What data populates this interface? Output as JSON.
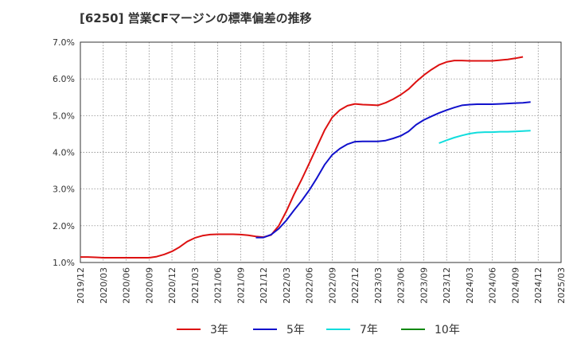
{
  "chart_data": {
    "type": "line",
    "title": "[6250]  営業CFマージンの標準偏差の推移",
    "xlabel": "",
    "ylabel": "",
    "ylim": [
      1.0,
      7.0
    ],
    "y_ticks": [
      "1.0%",
      "2.0%",
      "3.0%",
      "4.0%",
      "5.0%",
      "6.0%",
      "7.0%"
    ],
    "x_ticks": [
      "2019/12",
      "2020/03",
      "2020/06",
      "2020/09",
      "2020/12",
      "2021/03",
      "2021/06",
      "2021/09",
      "2021/12",
      "2022/03",
      "2022/06",
      "2022/09",
      "2022/12",
      "2023/03",
      "2023/06",
      "2023/09",
      "2023/12",
      "2024/03",
      "2024/06",
      "2024/09",
      "2024/12",
      "2025/03"
    ],
    "grid": true,
    "legend_position": "bottom",
    "series": [
      {
        "name": "3年",
        "color": "#dd1111",
        "points": [
          [
            "2019/12",
            1.15
          ],
          [
            "2020/01",
            1.15
          ],
          [
            "2020/02",
            1.14
          ],
          [
            "2020/03",
            1.13
          ],
          [
            "2020/04",
            1.13
          ],
          [
            "2020/05",
            1.13
          ],
          [
            "2020/06",
            1.13
          ],
          [
            "2020/07",
            1.13
          ],
          [
            "2020/08",
            1.13
          ],
          [
            "2020/09",
            1.13
          ],
          [
            "2020/10",
            1.16
          ],
          [
            "2020/11",
            1.22
          ],
          [
            "2020/12",
            1.3
          ],
          [
            "2021/01",
            1.42
          ],
          [
            "2021/02",
            1.57
          ],
          [
            "2021/03",
            1.67
          ],
          [
            "2021/04",
            1.73
          ],
          [
            "2021/05",
            1.76
          ],
          [
            "2021/06",
            1.77
          ],
          [
            "2021/07",
            1.77
          ],
          [
            "2021/08",
            1.77
          ],
          [
            "2021/09",
            1.76
          ],
          [
            "2021/10",
            1.74
          ],
          [
            "2021/11",
            1.71
          ],
          [
            "2021/12",
            1.69
          ],
          [
            "2022/01",
            1.75
          ],
          [
            "2022/02",
            2.0
          ],
          [
            "2022/03",
            2.4
          ],
          [
            "2022/04",
            2.85
          ],
          [
            "2022/05",
            3.26
          ],
          [
            "2022/06",
            3.7
          ],
          [
            "2022/07",
            4.15
          ],
          [
            "2022/08",
            4.6
          ],
          [
            "2022/09",
            4.95
          ],
          [
            "2022/10",
            5.15
          ],
          [
            "2022/11",
            5.27
          ],
          [
            "2022/12",
            5.32
          ],
          [
            "2023/01",
            5.3
          ],
          [
            "2023/02",
            5.29
          ],
          [
            "2023/03",
            5.28
          ],
          [
            "2023/04",
            5.35
          ],
          [
            "2023/05",
            5.45
          ],
          [
            "2023/06",
            5.57
          ],
          [
            "2023/07",
            5.72
          ],
          [
            "2023/08",
            5.92
          ],
          [
            "2023/09",
            6.1
          ],
          [
            "2023/10",
            6.25
          ],
          [
            "2023/11",
            6.38
          ],
          [
            "2023/12",
            6.46
          ],
          [
            "2024/01",
            6.5
          ],
          [
            "2024/02",
            6.5
          ],
          [
            "2024/03",
            6.49
          ],
          [
            "2024/04",
            6.49
          ],
          [
            "2024/05",
            6.49
          ],
          [
            "2024/06",
            6.49
          ],
          [
            "2024/07",
            6.51
          ],
          [
            "2024/08",
            6.53
          ],
          [
            "2024/09",
            6.56
          ],
          [
            "2024/10",
            6.6
          ]
        ]
      },
      {
        "name": "5年",
        "color": "#1111cc",
        "points": [
          [
            "2021/11",
            1.68
          ],
          [
            "2021/12",
            1.68
          ],
          [
            "2022/01",
            1.76
          ],
          [
            "2022/02",
            1.92
          ],
          [
            "2022/03",
            2.15
          ],
          [
            "2022/04",
            2.42
          ],
          [
            "2022/05",
            2.68
          ],
          [
            "2022/06",
            2.97
          ],
          [
            "2022/07",
            3.3
          ],
          [
            "2022/08",
            3.66
          ],
          [
            "2022/09",
            3.93
          ],
          [
            "2022/10",
            4.1
          ],
          [
            "2022/11",
            4.22
          ],
          [
            "2022/12",
            4.29
          ],
          [
            "2023/01",
            4.3
          ],
          [
            "2023/02",
            4.3
          ],
          [
            "2023/03",
            4.3
          ],
          [
            "2023/04",
            4.32
          ],
          [
            "2023/05",
            4.38
          ],
          [
            "2023/06",
            4.45
          ],
          [
            "2023/07",
            4.57
          ],
          [
            "2023/08",
            4.75
          ],
          [
            "2023/09",
            4.88
          ],
          [
            "2023/10",
            4.98
          ],
          [
            "2023/11",
            5.07
          ],
          [
            "2023/12",
            5.15
          ],
          [
            "2024/01",
            5.22
          ],
          [
            "2024/02",
            5.28
          ],
          [
            "2024/03",
            5.3
          ],
          [
            "2024/04",
            5.31
          ],
          [
            "2024/05",
            5.31
          ],
          [
            "2024/06",
            5.31
          ],
          [
            "2024/07",
            5.32
          ],
          [
            "2024/08",
            5.33
          ],
          [
            "2024/09",
            5.34
          ],
          [
            "2024/10",
            5.35
          ],
          [
            "2024/11",
            5.37
          ]
        ]
      },
      {
        "name": "7年",
        "color": "#11dddd",
        "points": [
          [
            "2023/11",
            4.25
          ],
          [
            "2023/12",
            4.33
          ],
          [
            "2024/01",
            4.4
          ],
          [
            "2024/02",
            4.46
          ],
          [
            "2024/03",
            4.51
          ],
          [
            "2024/04",
            4.54
          ],
          [
            "2024/05",
            4.55
          ],
          [
            "2024/06",
            4.55
          ],
          [
            "2024/07",
            4.56
          ],
          [
            "2024/08",
            4.56
          ],
          [
            "2024/09",
            4.57
          ],
          [
            "2024/10",
            4.58
          ],
          [
            "2024/11",
            4.59
          ]
        ]
      },
      {
        "name": "10年",
        "color": "#118811",
        "points": []
      }
    ]
  }
}
